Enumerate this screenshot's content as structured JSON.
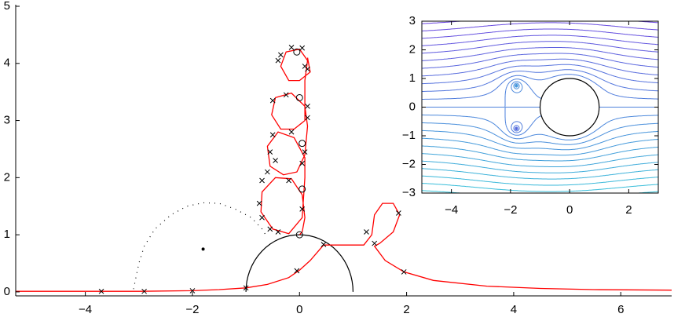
{
  "chart_data": [
    {
      "type": "trajectory",
      "xlim": [
        -5.3,
        6.95
      ],
      "ylim": [
        -0.07,
        5
      ],
      "xticks": [
        {
          "value": -4,
          "label": "−4"
        },
        {
          "value": -2,
          "label": "−2"
        },
        0,
        2,
        4,
        6
      ],
      "yticks": [
        0,
        1,
        2,
        3,
        4,
        5
      ],
      "lines": [
        {
          "color": "#ff0000",
          "x": [
            -5.3,
            -4,
            -3,
            -2,
            -1.5,
            -1,
            -0.6,
            -0.2,
            0,
            0.2,
            0.45,
            0.8,
            1.2,
            1.35,
            1.4,
            1.55,
            1.75,
            1.87,
            1.75,
            1.5,
            1.4,
            1.6,
            1.95,
            2.5,
            3.5,
            4.5,
            5.5,
            6.95
          ],
          "y": [
            0.01,
            0.01,
            0.01,
            0.02,
            0.04,
            0.07,
            0.13,
            0.25,
            0.38,
            0.55,
            0.82,
            0.82,
            0.82,
            1.0,
            1.35,
            1.55,
            1.55,
            1.35,
            1.05,
            0.85,
            0.8,
            0.55,
            0.35,
            0.2,
            0.1,
            0.06,
            0.04,
            0.03
          ]
        },
        {
          "color": "#ff0000",
          "x": [
            0.0,
            0.05,
            0.1,
            0.05,
            -0.15,
            -0.45,
            -0.7,
            -0.72,
            -0.5,
            -0.2,
            0.05,
            0.1,
            0.1,
            -0.1,
            -0.4,
            -0.6,
            -0.55,
            -0.3,
            -0.05,
            0.1,
            0.15,
            0.1,
            -0.15,
            -0.45,
            -0.52,
            -0.35,
            -0.1,
            0.1,
            0.1,
            0.15,
            0.0,
            -0.25,
            -0.35,
            -0.2,
            0.0,
            0.2,
            0.15
          ],
          "y": [
            1.0,
            1.05,
            1.3,
            1.7,
            1.98,
            2.0,
            1.75,
            1.4,
            1.1,
            1.02,
            1.3,
            2.0,
            2.35,
            2.7,
            2.8,
            2.55,
            2.2,
            2.05,
            2.1,
            2.4,
            2.9,
            3.25,
            3.48,
            3.4,
            3.1,
            2.85,
            2.85,
            3.0,
            3.7,
            4.05,
            4.25,
            4.2,
            3.95,
            3.7,
            3.7,
            3.85,
            4.1
          ]
        }
      ],
      "dotted": {
        "color": "#000000",
        "x": [
          -3.1,
          -3,
          -2.9,
          -2.7,
          -2.4,
          -2.1,
          -1.8,
          -1.5,
          -1.2,
          -0.9,
          -0.7,
          -0.6
        ],
        "y": [
          0.05,
          0.5,
          0.8,
          1.1,
          1.35,
          1.5,
          1.56,
          1.55,
          1.45,
          1.3,
          1.1,
          0.95
        ]
      },
      "cross_markers": {
        "color": "#000000",
        "x": [
          -3.7,
          -2.9,
          -2,
          -1,
          -0.05,
          0.45,
          1.4,
          1.25,
          1.85,
          1.95,
          -0.4,
          -0.55,
          -0.7,
          -0.75,
          -0.7,
          -0.2,
          0.05,
          -0.6,
          -0.45,
          -0.55,
          -0.5,
          -0.15,
          0.05,
          0.1,
          -0.5,
          -0.25,
          0.15,
          0.15,
          -0.4,
          -0.35,
          -0.15,
          0.05,
          0.1,
          0.15
        ],
        "y": [
          0.01,
          0.01,
          0.02,
          0.07,
          0.37,
          0.83,
          0.85,
          1.05,
          1.38,
          0.35,
          1.05,
          1.1,
          1.3,
          1.55,
          1.95,
          1.95,
          1.45,
          2.1,
          2.3,
          2.45,
          2.75,
          2.8,
          2.25,
          2.45,
          3.35,
          3.45,
          3.25,
          3.05,
          4.05,
          4.15,
          4.28,
          4.27,
          3.95,
          3.9
        ]
      },
      "circle_markers": {
        "color": "#000000",
        "x": [
          0,
          0.05,
          0.05,
          0.0,
          -0.05
        ],
        "y": [
          1.0,
          1.8,
          2.6,
          3.4,
          4.2
        ]
      },
      "point": {
        "x": -1.8,
        "y": 0.75
      },
      "body": {
        "cx": 0,
        "cy": 0,
        "r": 1,
        "color": "#000000"
      }
    },
    {
      "type": "streamlines",
      "xlim": [
        -5,
        3
      ],
      "ylim": [
        -3,
        3
      ],
      "xticks": [
        {
          "value": -4,
          "label": "−4"
        },
        {
          "value": -2,
          "label": "−2"
        },
        0,
        2
      ],
      "yticks": [
        3,
        2,
        1,
        0,
        {
          "value": -1,
          "label": "−1"
        },
        {
          "value": -2,
          "label": "−2"
        },
        {
          "value": -3,
          "label": "−3"
        }
      ],
      "vortices": {
        "x": [
          -1.8,
          -1.8
        ],
        "y": [
          0.75,
          -0.75
        ]
      },
      "circulation": 2.5,
      "body": {
        "cx": 0,
        "cy": 0,
        "r": 1
      },
      "levels": [
        -3,
        -2.75,
        -2.5,
        -2.25,
        -2,
        -1.75,
        -1.5,
        -1.25,
        -1,
        -0.75,
        -0.5,
        -0.25,
        0,
        0.25,
        0.5,
        0.75,
        1,
        1.25,
        1.5,
        1.75,
        2,
        2.25,
        2.5,
        2.75,
        3
      ],
      "colors": [
        "#30c8d8",
        "#6a3ce0"
      ]
    }
  ]
}
